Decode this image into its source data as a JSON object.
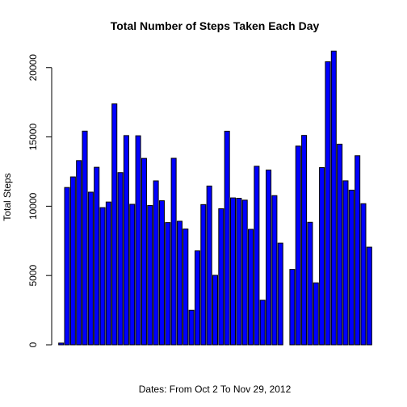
{
  "chart_data": {
    "type": "bar",
    "title": "Total Number of Steps Taken Each Day",
    "xlabel": "Dates: From Oct 2 To Nov 29, 2012",
    "ylabel": "Total Steps",
    "ylim": [
      0,
      21500
    ],
    "yticks": [
      0,
      5000,
      10000,
      15000,
      20000
    ],
    "yticklabels": [
      "0",
      "5000",
      "10000",
      "15000",
      "20000"
    ],
    "grid": false,
    "bar_color": "#0000ff",
    "border_color": "#000000",
    "values": [
      126,
      11352,
      12116,
      13294,
      15420,
      11015,
      12811,
      9900,
      10304,
      17382,
      12426,
      15098,
      10139,
      15084,
      13452,
      10056,
      11829,
      10395,
      8821,
      13460,
      8918,
      8355,
      2492,
      6778,
      10119,
      11458,
      5018,
      9819,
      15414,
      10600,
      10571,
      10439,
      8334,
      12883,
      3219,
      12608,
      10765,
      7336,
      0,
      5441,
      14339,
      15110,
      8841,
      4472,
      12787,
      20427,
      21194,
      14478,
      11834,
      11162,
      13646,
      10183,
      7047
    ]
  }
}
